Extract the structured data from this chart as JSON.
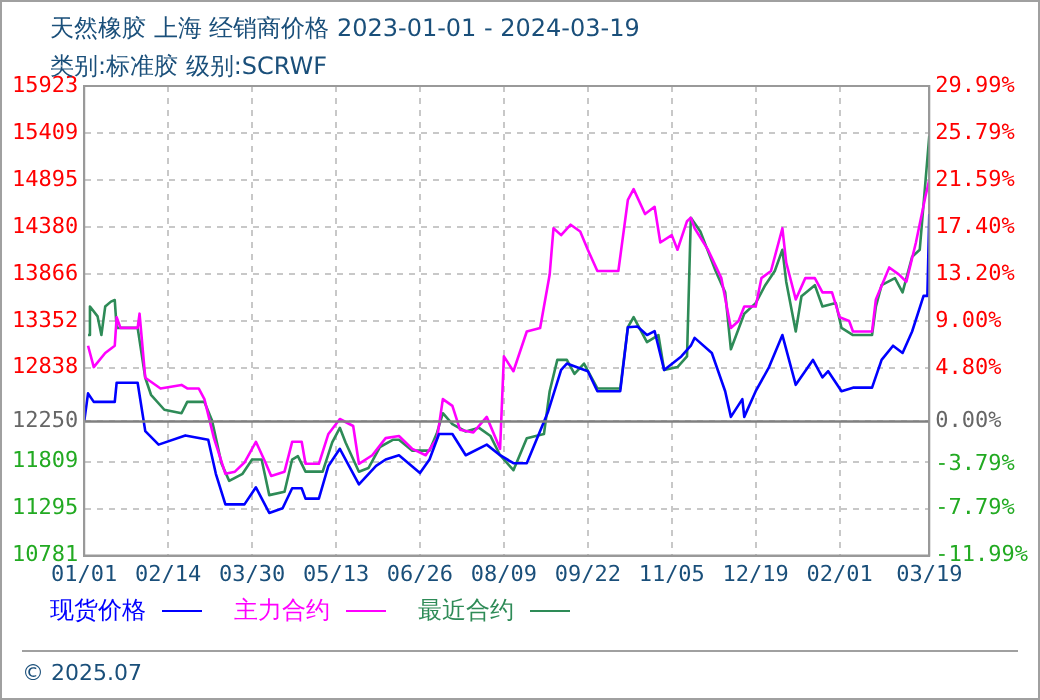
{
  "chart_data": {
    "type": "line",
    "title": "天然橡胶 上海 经销商价格 2023-01-01 - 2024-03-19",
    "subtitle": "类别:标准胶 级别:SCRWF",
    "xlim": [
      "2023-01-01",
      "2024-03-19"
    ],
    "xticks": [
      {
        "value": "2023-01-01",
        "label": "01/01"
      },
      {
        "value": "2023-02-14",
        "label": "02/14"
      },
      {
        "value": "2023-03-30",
        "label": "03/30"
      },
      {
        "value": "2023-05-13",
        "label": "05/13"
      },
      {
        "value": "2023-06-26",
        "label": "06/26"
      },
      {
        "value": "2023-08-09",
        "label": "08/09"
      },
      {
        "value": "2023-09-22",
        "label": "09/22"
      },
      {
        "value": "2023-11-05",
        "label": "11/05"
      },
      {
        "value": "2023-12-19",
        "label": "12/19"
      },
      {
        "value": "2024-02-01",
        "label": "02/01"
      },
      {
        "value": "2024-03-19",
        "label": "03/19"
      }
    ],
    "ylim": [
      10781,
      15923
    ],
    "yticks": [
      10781,
      11295,
      11809,
      12250,
      12838,
      13352,
      13866,
      14380,
      14895,
      15409,
      15923
    ],
    "y2lim": [
      -11.99,
      29.99
    ],
    "y2ticks": [
      {
        "value": -11.99,
        "label": "-11.99%"
      },
      {
        "value": -7.79,
        "label": "-7.79%"
      },
      {
        "value": -3.79,
        "label": "-3.79%"
      },
      {
        "value": 0,
        "label": "0.00%"
      },
      {
        "value": 4.8,
        "label": "4.80%"
      },
      {
        "value": 9,
        "label": "9.00%"
      },
      {
        "value": 13.2,
        "label": "13.20%"
      },
      {
        "value": 17.4,
        "label": "17.40%"
      },
      {
        "value": 21.59,
        "label": "21.59%"
      },
      {
        "value": 25.79,
        "label": "25.79%"
      },
      {
        "value": 29.99,
        "label": "29.99%"
      }
    ],
    "ref_lines": [
      {
        "axis": "y",
        "value": 12250,
        "color": "#808080"
      }
    ],
    "grid": true,
    "legend": "bottom",
    "marker": "none",
    "line_style": "solid",
    "annotations": [
      "© 2025.07"
    ],
    "series": [
      {
        "name": "现货价格",
        "color": "#0000ff",
        "x": [
          "2023-01-01",
          "2023-01-03",
          "2023-01-06",
          "2023-01-17",
          "2023-01-18",
          "2023-01-29",
          "2023-02-02",
          "2023-02-09",
          "2023-02-23",
          "2023-03-07",
          "2023-03-11",
          "2023-03-16",
          "2023-03-26",
          "2023-04-01",
          "2023-04-08",
          "2023-04-15",
          "2023-04-20",
          "2023-04-25",
          "2023-04-27",
          "2023-05-04",
          "2023-05-09",
          "2023-05-15",
          "2023-05-25",
          "2023-06-03",
          "2023-06-08",
          "2023-06-15",
          "2023-06-26",
          "2023-07-01",
          "2023-07-06",
          "2023-07-13",
          "2023-07-20",
          "2023-07-31",
          "2023-08-07",
          "2023-08-14",
          "2023-08-21",
          "2023-09-01",
          "2023-09-08",
          "2023-09-11",
          "2023-09-22",
          "2023-09-27",
          "2023-10-09",
          "2023-10-13",
          "2023-10-18",
          "2023-10-23",
          "2023-10-27",
          "2023-11-01",
          "2023-11-10",
          "2023-11-15",
          "2023-11-17",
          "2023-11-26",
          "2023-12-03",
          "2023-12-06",
          "2023-12-12",
          "2023-12-13",
          "2023-12-19",
          "2023-12-26",
          "2024-01-02",
          "2024-01-09",
          "2024-01-18",
          "2024-01-23",
          "2024-01-26",
          "2024-02-02",
          "2024-02-08",
          "2024-02-18",
          "2024-02-23",
          "2024-02-29",
          "2024-03-05",
          "2024-03-10",
          "2024-03-16",
          "2024-03-18",
          "2024-03-19"
        ],
        "values": [
          12250,
          12557,
          12464,
          12464,
          12674,
          12674,
          12144,
          11996,
          12097,
          12050,
          11677,
          11342,
          11342,
          11529,
          11248,
          11300,
          11518,
          11518,
          11405,
          11405,
          11763,
          11950,
          11560,
          11763,
          11833,
          11880,
          11685,
          11833,
          12113,
          12113,
          11880,
          11996,
          11880,
          11793,
          11793,
          12347,
          12814,
          12884,
          12800,
          12581,
          12581,
          13282,
          13290,
          13196,
          13240,
          12814,
          12962,
          13079,
          13165,
          13000,
          12581,
          12300,
          12494,
          12300,
          12581,
          12845,
          13196,
          12651,
          12924,
          12733,
          12800,
          12581,
          12620,
          12620,
          12924,
          13079,
          13000,
          13235,
          13625,
          13625,
          14521
        ]
      },
      {
        "name": "主力合约",
        "color": "#ff00ff",
        "x": [
          "2023-01-03",
          "2023-01-06",
          "2023-01-12",
          "2023-01-17",
          "2023-01-18",
          "2023-01-20",
          "2023-01-29",
          "2023-01-30",
          "2023-02-02",
          "2023-02-10",
          "2023-02-21",
          "2023-02-24",
          "2023-03-02",
          "2023-03-05",
          "2023-03-10",
          "2023-03-16",
          "2023-03-21",
          "2023-03-26",
          "2023-04-01",
          "2023-04-06",
          "2023-04-09",
          "2023-04-16",
          "2023-04-20",
          "2023-04-25",
          "2023-04-27",
          "2023-05-04",
          "2023-05-09",
          "2023-05-15",
          "2023-05-22",
          "2023-05-25",
          "2023-06-01",
          "2023-06-08",
          "2023-06-15",
          "2023-06-22",
          "2023-06-29",
          "2023-07-05",
          "2023-07-08",
          "2023-07-13",
          "2023-07-17",
          "2023-07-24",
          "2023-07-31",
          "2023-08-07",
          "2023-08-09",
          "2023-08-14",
          "2023-08-21",
          "2023-08-28",
          "2023-09-02",
          "2023-09-04",
          "2023-09-08",
          "2023-09-13",
          "2023-09-18",
          "2023-09-22",
          "2023-09-27",
          "2023-10-08",
          "2023-10-13",
          "2023-10-16",
          "2023-10-22",
          "2023-10-27",
          "2023-10-30",
          "2023-11-05",
          "2023-11-08",
          "2023-11-13",
          "2023-11-15",
          "2023-11-17",
          "2023-11-24",
          "2023-12-01",
          "2023-12-06",
          "2023-12-10",
          "2023-12-13",
          "2023-12-19",
          "2023-12-22",
          "2023-12-27",
          "2024-01-02",
          "2024-01-04",
          "2024-01-09",
          "2024-01-14",
          "2024-01-19",
          "2024-01-23",
          "2024-01-28",
          "2024-02-01",
          "2024-02-06",
          "2024-02-08",
          "2024-02-18",
          "2024-02-20",
          "2024-02-27",
          "2024-03-03",
          "2024-03-07",
          "2024-03-12",
          "2024-03-17",
          "2024-03-19"
        ],
        "values": [
          13079,
          12845,
          13000,
          13079,
          13391,
          13274,
          13274,
          13430,
          12728,
          12611,
          12650,
          12611,
          12611,
          12494,
          12067,
          11677,
          11700,
          11800,
          12027,
          11800,
          11653,
          11700,
          12027,
          12027,
          11786,
          11786,
          12113,
          12277,
          12200,
          11786,
          11880,
          12067,
          12090,
          11950,
          11880,
          12067,
          12494,
          12420,
          12160,
          12130,
          12300,
          11950,
          12962,
          12800,
          13235,
          13274,
          13859,
          14365,
          14290,
          14404,
          14330,
          14130,
          13897,
          13897,
          14677,
          14794,
          14521,
          14600,
          14209,
          14290,
          14130,
          14443,
          14480,
          14365,
          14130,
          13819,
          13274,
          13350,
          13508,
          13508,
          13819,
          13897,
          14365,
          13990,
          13586,
          13819,
          13819,
          13663,
          13663,
          13391,
          13350,
          13235,
          13235,
          13586,
          13936,
          13860,
          13780,
          14209,
          14715,
          14895
        ]
      },
      {
        "name": "最近合约",
        "color": "#2e8b57",
        "x": [
          "2023-01-03",
          "2023-01-04",
          "2023-01-08",
          "2023-01-10",
          "2023-01-12",
          "2023-01-15",
          "2023-01-17",
          "2023-01-18",
          "2023-01-29",
          "2023-02-02",
          "2023-02-05",
          "2023-02-12",
          "2023-02-21",
          "2023-02-24",
          "2023-03-05",
          "2023-03-09",
          "2023-03-14",
          "2023-03-18",
          "2023-03-25",
          "2023-03-30",
          "2023-04-04",
          "2023-04-08",
          "2023-04-16",
          "2023-04-20",
          "2023-04-23",
          "2023-04-27",
          "2023-05-06",
          "2023-05-11",
          "2023-05-15",
          "2023-05-18",
          "2023-05-25",
          "2023-05-30",
          "2023-06-05",
          "2023-06-12",
          "2023-06-15",
          "2023-06-22",
          "2023-07-01",
          "2023-07-05",
          "2023-07-08",
          "2023-07-13",
          "2023-07-20",
          "2023-07-27",
          "2023-08-02",
          "2023-08-07",
          "2023-08-14",
          "2023-08-21",
          "2023-08-30",
          "2023-09-02",
          "2023-09-06",
          "2023-09-11",
          "2023-09-15",
          "2023-09-20",
          "2023-09-27",
          "2023-10-09",
          "2023-10-13",
          "2023-10-16",
          "2023-10-23",
          "2023-10-29",
          "2023-11-01",
          "2023-11-08",
          "2023-11-13",
          "2023-11-15",
          "2023-11-20",
          "2023-11-28",
          "2023-12-03",
          "2023-12-06",
          "2023-12-13",
          "2023-12-19",
          "2023-12-24",
          "2023-12-29",
          "2024-01-02",
          "2024-01-04",
          "2024-01-09",
          "2024-01-12",
          "2024-01-19",
          "2024-01-23",
          "2024-01-30",
          "2024-02-02",
          "2024-02-08",
          "2024-02-18",
          "2024-02-20",
          "2024-02-23",
          "2024-03-01",
          "2024-03-05",
          "2024-03-10",
          "2024-03-14",
          "2024-03-19"
        ],
        "values": [
          13196,
          13508,
          13400,
          13196,
          13508,
          13562,
          13580,
          13274,
          13274,
          12728,
          12542,
          12378,
          12340,
          12464,
          12464,
          12260,
          11786,
          11599,
          11677,
          11833,
          11833,
          11443,
          11480,
          11833,
          11870,
          11700,
          11700,
          12020,
          12180,
          12020,
          11700,
          11740,
          11970,
          12050,
          12050,
          11930,
          11930,
          12130,
          12340,
          12220,
          12140,
          12180,
          12090,
          11880,
          11716,
          12067,
          12113,
          12581,
          12924,
          12924,
          12770,
          12884,
          12611,
          12611,
          13282,
          13391,
          13118,
          13196,
          12814,
          12845,
          12962,
          14481,
          14330,
          13897,
          13663,
          13040,
          13430,
          13546,
          13742,
          13897,
          14130,
          13780,
          13235,
          13620,
          13742,
          13508,
          13546,
          13274,
          13196,
          13196,
          13508,
          13742,
          13819,
          13663,
          14053,
          14130,
          15378
        ]
      }
    ]
  }
}
